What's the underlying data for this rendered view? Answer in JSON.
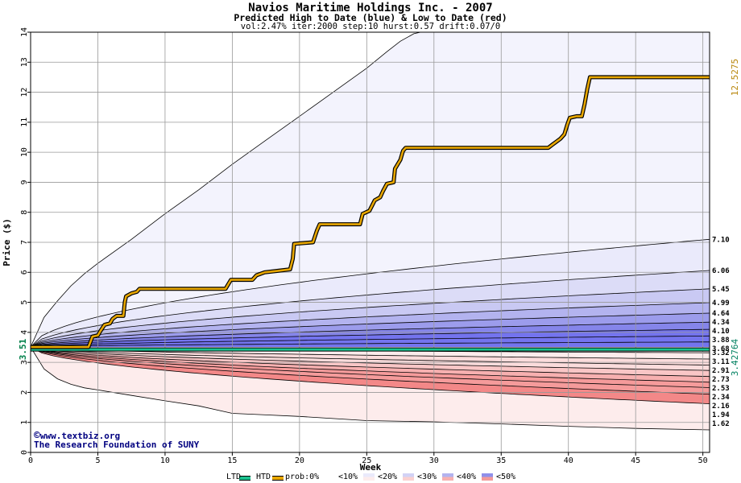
{
  "title": "Navios Maritime Holdings Inc. - 2007",
  "subtitle": "Predicted High to Date (blue) &  Low to Date (red)",
  "params": "vol:2.47% iter:2000 step:10 hurst:0.57 drift:0.07/0",
  "credit_url": "www.textbiz.org",
  "credit_org": "The Research Foundation of SUNY",
  "copyright_symbol": "©",
  "colors": {
    "background": "#ffffff",
    "plot_background": "#f3f3fd",
    "grid": "#999999",
    "high_line": "#e8a700",
    "low_line": "#1bc18e",
    "start_label": "#00804a",
    "end_high_label": "#b8860b",
    "end_low_label": "#008060",
    "blue_bands": [
      "#eaeafb",
      "#dcdcf7",
      "#c9c9f3",
      "#b3b3ef",
      "#9c9cec",
      "#8585ea",
      "#7474ee"
    ],
    "red_bands": [
      "#fdecec",
      "#fbdcdc",
      "#f9c6c6",
      "#f7b0b0",
      "#f59b9b",
      "#f38888"
    ]
  },
  "chart_data": {
    "type": "area",
    "title": "Navios Maritime Holdings Inc. - 2007",
    "subtitle": "Predicted High to Date (blue) &  Low to Date (red)",
    "xlabel": "Week",
    "ylabel": "Price ($)",
    "xlim": [
      0,
      50.5
    ],
    "ylim": [
      0,
      14
    ],
    "x_ticks": [
      0,
      5,
      10,
      15,
      20,
      25,
      30,
      35,
      40,
      45,
      50
    ],
    "y_ticks": [
      0,
      1,
      2,
      3,
      4,
      5,
      6,
      7,
      8,
      9,
      10,
      11,
      12,
      13,
      14
    ],
    "grid": true,
    "start_price": 3.51,
    "start_price_label": "3.51",
    "high_outer_bound": [
      [
        0,
        3.51
      ],
      [
        1,
        4.5
      ],
      [
        2,
        5.05
      ],
      [
        3,
        5.55
      ],
      [
        4,
        5.95
      ],
      [
        5,
        6.3
      ],
      [
        7.5,
        7.1
      ],
      [
        10,
        7.95
      ],
      [
        12.5,
        8.75
      ],
      [
        15,
        9.6
      ],
      [
        17.5,
        10.4
      ],
      [
        20,
        11.2
      ],
      [
        22.5,
        12.0
      ],
      [
        25,
        12.8
      ],
      [
        26.5,
        13.35
      ],
      [
        27.5,
        13.7
      ],
      [
        28.5,
        13.95
      ],
      [
        29,
        14.0
      ]
    ],
    "low_outer_bound": [
      [
        0,
        3.51
      ],
      [
        1,
        2.78
      ],
      [
        2,
        2.45
      ],
      [
        3,
        2.27
      ],
      [
        4,
        2.15
      ],
      [
        5,
        2.08
      ],
      [
        7.5,
        1.9
      ],
      [
        10,
        1.72
      ],
      [
        12.5,
        1.55
      ],
      [
        15,
        1.3
      ],
      [
        17.5,
        1.25
      ],
      [
        20,
        1.2
      ],
      [
        25,
        1.06
      ],
      [
        30,
        1.02
      ],
      [
        35,
        0.95
      ],
      [
        40,
        0.87
      ],
      [
        45,
        0.8
      ],
      [
        50.5,
        0.75
      ]
    ],
    "high_band_ends": [
      7.1,
      6.06,
      5.45,
      4.99,
      4.64,
      4.34,
      4.1,
      3.88,
      3.68
    ],
    "low_band_ends": [
      3.32,
      3.11,
      2.91,
      2.73,
      2.53,
      2.34,
      2.16,
      1.94,
      1.62
    ],
    "high_band_end_labels": [
      "7.10",
      "6.06",
      "5.45",
      "4.99",
      "4.64",
      "4.34",
      "4.10",
      "3.88",
      "3.68"
    ],
    "low_band_end_labels": [
      "3.32",
      "3.11",
      "2.91",
      "2.73",
      "2.53",
      "2.34",
      "2.16",
      "1.94",
      "1.62"
    ],
    "high_to_date": [
      [
        0,
        3.51
      ],
      [
        4.3,
        3.51
      ],
      [
        4.6,
        3.86
      ],
      [
        5.0,
        3.9
      ],
      [
        5.2,
        4.05
      ],
      [
        5.5,
        4.25
      ],
      [
        5.9,
        4.3
      ],
      [
        6.1,
        4.45
      ],
      [
        6.4,
        4.55
      ],
      [
        6.9,
        4.55
      ],
      [
        7.0,
        5.0
      ],
      [
        7.1,
        5.2
      ],
      [
        7.5,
        5.3
      ],
      [
        7.9,
        5.35
      ],
      [
        8.1,
        5.45
      ],
      [
        11,
        5.45
      ],
      [
        14.5,
        5.45
      ],
      [
        14.9,
        5.75
      ],
      [
        16.5,
        5.75
      ],
      [
        16.8,
        5.9
      ],
      [
        17.4,
        6.0
      ],
      [
        18.4,
        6.05
      ],
      [
        19.3,
        6.1
      ],
      [
        19.5,
        6.45
      ],
      [
        19.6,
        6.95
      ],
      [
        21.0,
        7.0
      ],
      [
        21.3,
        7.4
      ],
      [
        21.5,
        7.6
      ],
      [
        24.5,
        7.6
      ],
      [
        24.7,
        7.95
      ],
      [
        25.2,
        8.05
      ],
      [
        25.6,
        8.4
      ],
      [
        26.0,
        8.5
      ],
      [
        26.2,
        8.7
      ],
      [
        26.5,
        8.95
      ],
      [
        27.0,
        9.0
      ],
      [
        27.1,
        9.45
      ],
      [
        27.5,
        9.75
      ],
      [
        27.7,
        10.05
      ],
      [
        27.9,
        10.15
      ],
      [
        38.5,
        10.15
      ],
      [
        38.8,
        10.25
      ],
      [
        39.1,
        10.35
      ],
      [
        39.4,
        10.45
      ],
      [
        39.7,
        10.6
      ],
      [
        39.9,
        10.9
      ],
      [
        40.1,
        11.15
      ],
      [
        40.6,
        11.2
      ],
      [
        41.0,
        11.2
      ],
      [
        41.2,
        11.6
      ],
      [
        41.4,
        12.1
      ],
      [
        41.6,
        12.5
      ],
      [
        50.5,
        12.5
      ]
    ],
    "low_to_date": [
      [
        0,
        3.43
      ],
      [
        50.5,
        3.43
      ]
    ],
    "end_high_value": "12.5275",
    "end_low_value": "3.42764",
    "legend": [
      "LTD",
      "HTD",
      "prob:0%",
      "<10%",
      "<20%",
      "<30%",
      "<40%",
      "<50%"
    ]
  }
}
